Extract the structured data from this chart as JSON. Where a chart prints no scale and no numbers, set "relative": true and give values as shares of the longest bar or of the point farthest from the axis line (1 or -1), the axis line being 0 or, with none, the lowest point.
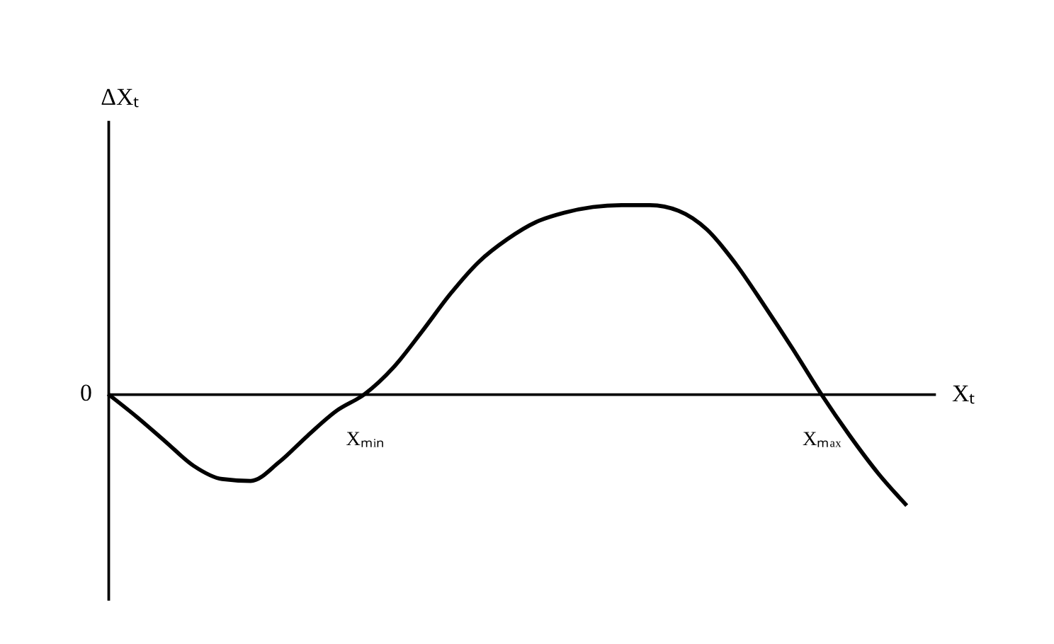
{
  "chart_data": {
    "type": "line",
    "relative": true,
    "xlabel": "Xₜ",
    "ylabel": "ΔXₜ",
    "categories": [
      null,
      null,
      null,
      null,
      null,
      null,
      null,
      null,
      null,
      "Xₘᵢₙ",
      null,
      null,
      null,
      null,
      null,
      null,
      null,
      null,
      null,
      null,
      null,
      null,
      null,
      null,
      null,
      "Xₘₐₓ",
      null,
      null,
      null
    ],
    "series": [
      {
        "color": "#000000",
        "values": [
          0,
          -0.12,
          -0.25,
          -0.38,
          -0.45,
          -0.46,
          -0.36,
          -0.22,
          -0.09,
          0,
          0.14,
          0.33,
          0.53,
          0.7,
          0.82,
          0.91,
          0.96,
          0.99,
          1,
          1,
          0.97,
          0.87,
          0.69,
          0.47,
          0.24,
          0,
          -0.22,
          -0.42,
          -0.59
        ]
      }
    ],
    "annotations": [
      "0"
    ],
    "grid": false,
    "line_style": "solid"
  }
}
